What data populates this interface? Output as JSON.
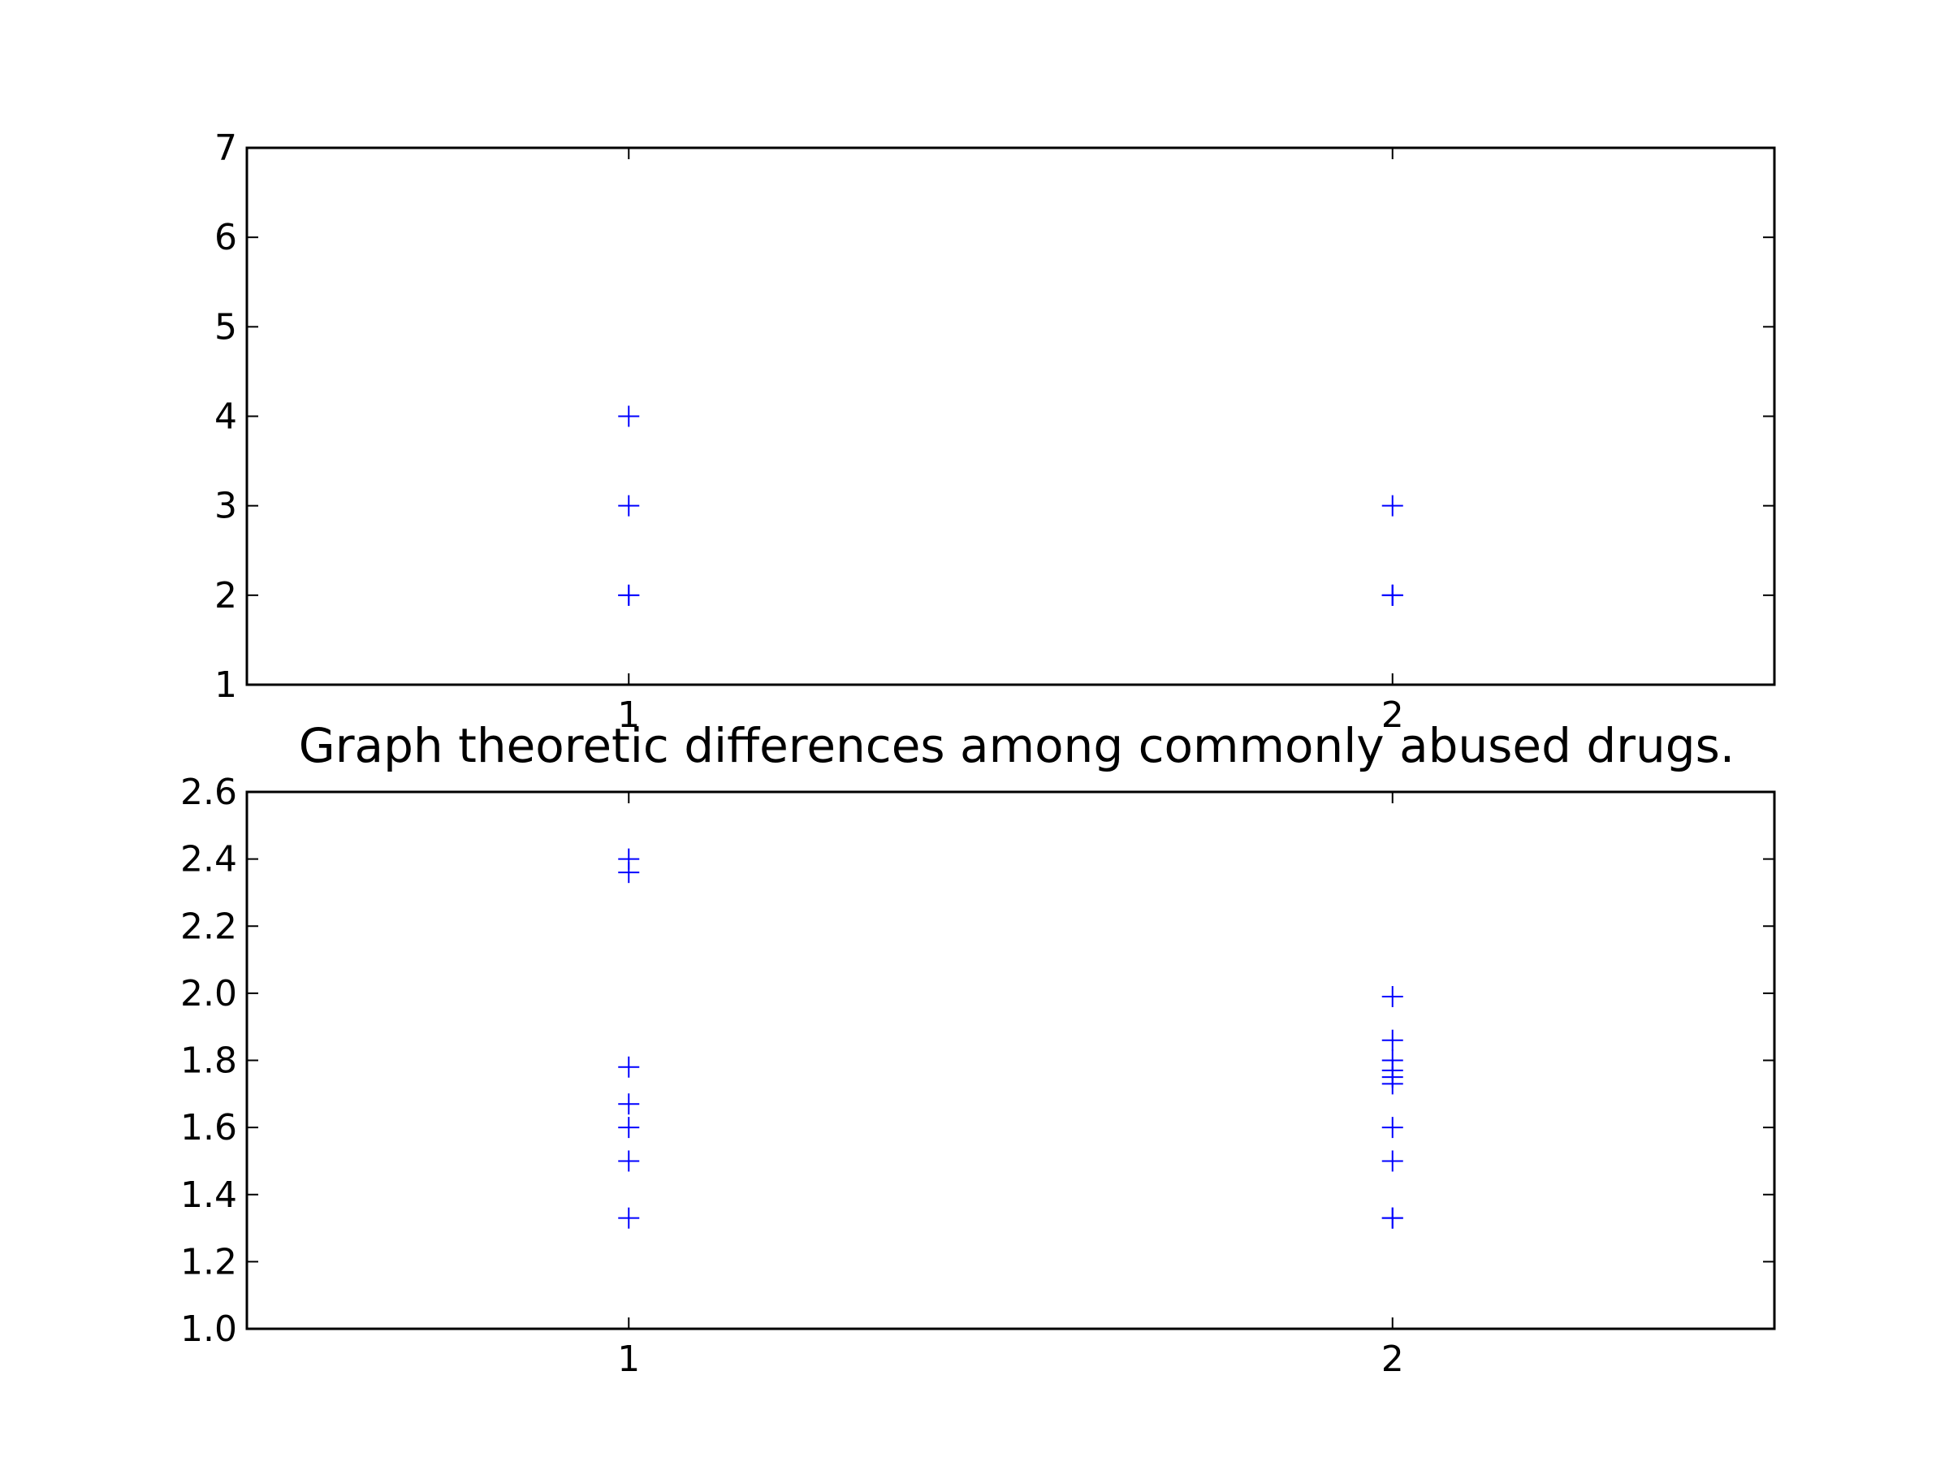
{
  "colors": {
    "marker": "#0000ff",
    "axes": "#000000",
    "background": "#ffffff"
  },
  "chart_data": [
    {
      "type": "scatter",
      "title": "",
      "xlabel": "",
      "ylabel": "",
      "xlim": [
        0.5,
        2.5
      ],
      "ylim": [
        1,
        7
      ],
      "xticks": [
        1,
        2
      ],
      "xtick_labels": [
        "1",
        "2"
      ],
      "yticks": [
        1,
        2,
        3,
        4,
        5,
        6,
        7
      ],
      "ytick_labels": [
        "1",
        "2",
        "3",
        "4",
        "5",
        "6",
        "7"
      ],
      "grid": false,
      "marker": "+",
      "series": [
        {
          "points": [
            {
              "x": 1,
              "y": 4
            },
            {
              "x": 1,
              "y": 3
            },
            {
              "x": 1,
              "y": 2
            },
            {
              "x": 1,
              "y": 2
            },
            {
              "x": 2,
              "y": 3
            },
            {
              "x": 2,
              "y": 2
            },
            {
              "x": 2,
              "y": 2
            },
            {
              "x": 2,
              "y": 2
            }
          ]
        }
      ]
    },
    {
      "type": "scatter",
      "title": "Graph theoretic differences among commonly abused drugs.",
      "xlabel": "",
      "ylabel": "",
      "xlim": [
        0.5,
        2.5
      ],
      "ylim": [
        1.0,
        2.6
      ],
      "xticks": [
        1,
        2
      ],
      "xtick_labels": [
        "1",
        "2"
      ],
      "yticks": [
        1.0,
        1.2,
        1.4,
        1.6,
        1.8,
        2.0,
        2.2,
        2.4,
        2.6
      ],
      "ytick_labels": [
        "1.0",
        "1.2",
        "1.4",
        "1.6",
        "1.8",
        "2.0",
        "2.2",
        "2.4",
        "2.6"
      ],
      "grid": false,
      "marker": "+",
      "series": [
        {
          "points": [
            {
              "x": 1,
              "y": 2.4
            },
            {
              "x": 1,
              "y": 2.36
            },
            {
              "x": 1,
              "y": 1.78
            },
            {
              "x": 1,
              "y": 1.67
            },
            {
              "x": 1,
              "y": 1.6
            },
            {
              "x": 1,
              "y": 1.5
            },
            {
              "x": 1,
              "y": 1.33
            },
            {
              "x": 2,
              "y": 1.99
            },
            {
              "x": 2,
              "y": 1.86
            },
            {
              "x": 2,
              "y": 1.8
            },
            {
              "x": 2,
              "y": 1.77
            },
            {
              "x": 2,
              "y": 1.75
            },
            {
              "x": 2,
              "y": 1.73
            },
            {
              "x": 2,
              "y": 1.6
            },
            {
              "x": 2,
              "y": 1.5
            },
            {
              "x": 2,
              "y": 1.33
            },
            {
              "x": 2,
              "y": 1.33
            }
          ]
        }
      ]
    }
  ]
}
